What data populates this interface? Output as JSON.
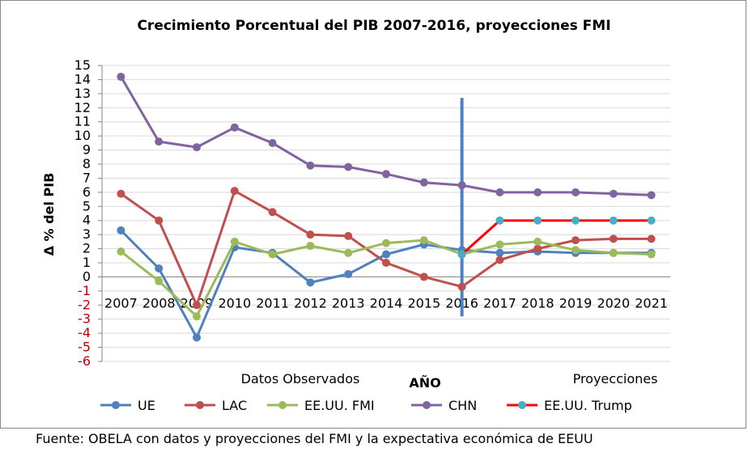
{
  "chart_data": {
    "type": "line",
    "title": "Crecimiento Porcentual del PIB 2007-2016, proyecciones FMI",
    "xlabel": "AÑO",
    "ylabel": "Δ % del PIB",
    "ylim": [
      -6,
      15
    ],
    "yticks": [
      15,
      14,
      13,
      12,
      11,
      10,
      9,
      8,
      7,
      6,
      5,
      4,
      3,
      2,
      1,
      0,
      -1,
      -2,
      -3,
      -4,
      -5,
      -6
    ],
    "grid": true,
    "legend_position": "bottom",
    "categories": [
      "2007",
      "2008",
      "2009",
      "2010",
      "2011",
      "2012",
      "2013",
      "2014",
      "2015",
      "2016",
      "2017",
      "2018",
      "2019",
      "2020",
      "2021"
    ],
    "series": [
      {
        "name": "UE",
        "color": "#4f81bd",
        "values": [
          3.3,
          0.6,
          -4.3,
          2.1,
          1.7,
          -0.4,
          0.2,
          1.6,
          2.3,
          1.9,
          1.7,
          1.8,
          1.7,
          1.7,
          1.7
        ]
      },
      {
        "name": "LAC",
        "color": "#c0504d",
        "values": [
          5.9,
          4.0,
          -2.0,
          6.1,
          4.6,
          3.0,
          2.9,
          1.0,
          0.0,
          -0.7,
          1.2,
          2.0,
          2.6,
          2.7,
          2.7
        ]
      },
      {
        "name": "EE.UU. FMI",
        "color": "#9bbb59",
        "values": [
          1.8,
          -0.3,
          -2.8,
          2.5,
          1.6,
          2.2,
          1.7,
          2.4,
          2.6,
          1.6,
          2.3,
          2.5,
          1.9,
          1.7,
          1.6
        ]
      },
      {
        "name": "CHN",
        "color": "#8064a2",
        "values": [
          14.2,
          9.6,
          9.2,
          10.6,
          9.5,
          7.9,
          7.8,
          7.3,
          6.7,
          6.5,
          6.0,
          6.0,
          6.0,
          5.9,
          5.8
        ]
      },
      {
        "name": "EE.UU. Trump",
        "color": "#ff0000",
        "marker_color": "#4bacc6",
        "values": [
          null,
          null,
          null,
          null,
          null,
          null,
          null,
          null,
          null,
          1.6,
          4.0,
          4.0,
          4.0,
          4.0,
          4.0
        ]
      }
    ],
    "annotations": {
      "observed_label": "Datos Observados",
      "projection_label": "Proyecciones",
      "divider_after": "2016"
    }
  },
  "source_text": "Fuente: OBELA con datos y proyecciones del FMI y la expectativa económica de EEUU"
}
